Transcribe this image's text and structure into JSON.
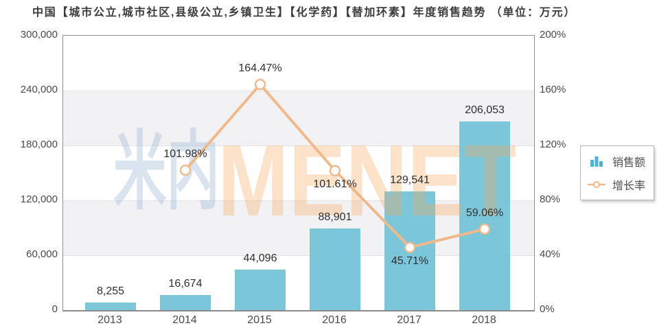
{
  "title": "中国【城市公立,城市社区,县级公立,乡镇卫生】【化学药】【替加环素】年度销售趋势 （单位：万元）",
  "watermark": {
    "cjk": "米内",
    "latin": "MENET"
  },
  "legend": {
    "items": [
      {
        "label": "销售额",
        "icon": "bar-chart-icon"
      },
      {
        "label": "增长率",
        "icon": "line-marker-icon"
      }
    ]
  },
  "colors": {
    "bar": "#7cc6da",
    "legend_bar_icon": "#4fb2d4",
    "line": "#f0b98c",
    "marker_fill": "#ffffff",
    "band": "#f2f2f5",
    "watermark_cjk": "rgba(158,185,210,0.38)",
    "watermark_latin": "rgba(247,167,92,0.33)"
  },
  "chart_data": {
    "type": "bar+line",
    "title": "中国【城市公立,城市社区,县级公立,乡镇卫生】【化学药】【替加环素】年度销售趋势",
    "unit": "万元",
    "categories": [
      "2013",
      "2014",
      "2015",
      "2016",
      "2017",
      "2018"
    ],
    "series": [
      {
        "name": "销售额",
        "type": "bar",
        "axis": "left",
        "values": [
          8255,
          16674,
          44096,
          88901,
          129541,
          206053
        ],
        "labels": [
          "8,255",
          "16,674",
          "44,096",
          "88,901",
          "129,541",
          "206,053"
        ]
      },
      {
        "name": "增长率",
        "type": "line",
        "axis": "right",
        "values": [
          null,
          101.98,
          164.47,
          101.61,
          45.71,
          59.06
        ],
        "labels": [
          null,
          "101.98%",
          "164.47%",
          "101.61%",
          "45.71%",
          "59.06%"
        ],
        "label_placement": [
          null,
          "above",
          "above",
          "below",
          "below",
          "above"
        ]
      }
    ],
    "left_axis": {
      "min": 0,
      "max": 300000,
      "ticks": [
        "300,000",
        "240,000",
        "180,000",
        "120,000",
        "60,000",
        "0"
      ]
    },
    "right_axis": {
      "min": 0,
      "max": 200,
      "ticks": [
        "200%",
        "160%",
        "120%",
        "80%",
        "40%",
        "0%"
      ]
    },
    "legend_position": "right",
    "grid": "horizontal-bands"
  }
}
